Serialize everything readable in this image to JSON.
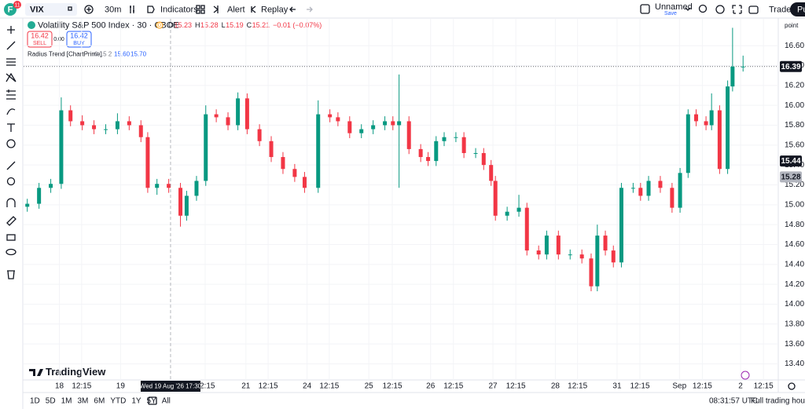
{
  "toolbar": {
    "avatar": "F",
    "badge": "11",
    "symbol": "VIX",
    "interval": "30m",
    "indicators": "Indicators",
    "alert": "Alert",
    "replay": "Replay",
    "layout_name": "Unnamed",
    "layout_status": "Save",
    "trade": "Trade",
    "publish": "Pu"
  },
  "legend": {
    "title": "Volatility S&P 500 Index · 30 · CBOE",
    "flag": "D",
    "ohlc": [
      {
        "k": "O",
        "v": "15.23"
      },
      {
        "k": "H",
        "v": "15.28"
      },
      {
        "k": "L",
        "v": "15.19"
      },
      {
        "k": "C",
        "v": "15.21"
      }
    ],
    "change": "−0.01 (−0.07%)",
    "sell_price": "16.42",
    "sell": "SELL",
    "spread": "0.00",
    "buy_price": "16.42",
    "buy": "BUY",
    "indicator": "Radius Trend [ChartPrime]",
    "indicator_params": "0.15 2",
    "indicator_v1": "15.60",
    "indicator_v2": "15.70"
  },
  "chart_data": {
    "type": "candlestick",
    "y_unit": "point",
    "up_color": "#089981",
    "down_color": "#f23645",
    "xlim": [
      -0.58,
      11.64
    ],
    "ylim": [
      13.23,
      16.87
    ],
    "grid": true,
    "yticks": [
      {
        "value": 13.4,
        "label": "13.40"
      },
      {
        "value": 13.6,
        "label": "13.60"
      },
      {
        "value": 13.8,
        "label": "13.80"
      },
      {
        "value": 14,
        "label": "14.00"
      },
      {
        "value": 14.2,
        "label": "14.20"
      },
      {
        "value": 14.4,
        "label": "14.40"
      },
      {
        "value": 14.6,
        "label": "14.60"
      },
      {
        "value": 14.8,
        "label": "14.80"
      },
      {
        "value": 15,
        "label": "15.00"
      },
      {
        "value": 15.2,
        "label": "15.20"
      },
      {
        "value": 15.4,
        "label": "15.40"
      },
      {
        "value": 15.6,
        "label": "15.60"
      },
      {
        "value": 15.8,
        "label": "15.80"
      },
      {
        "value": 16,
        "label": "16.00"
      },
      {
        "value": 16.2,
        "label": "16.20"
      },
      {
        "value": 16.4,
        "label": "16.40"
      },
      {
        "value": 16.6,
        "label": "16.60"
      }
    ],
    "xticks": [
      {
        "value": 0,
        "label": "18"
      },
      {
        "value": 0.36,
        "label": "12:15"
      },
      {
        "value": 0.99,
        "label": "19"
      },
      {
        "value": 2.36,
        "label": "12:15"
      },
      {
        "value": 3.02,
        "label": "21"
      },
      {
        "value": 3.38,
        "label": "12:15"
      },
      {
        "value": 4.01,
        "label": "24"
      },
      {
        "value": 4.37,
        "label": "12:15"
      },
      {
        "value": 5.01,
        "label": "25"
      },
      {
        "value": 5.39,
        "label": "12:15"
      },
      {
        "value": 6.01,
        "label": "26"
      },
      {
        "value": 6.38,
        "label": "12:15"
      },
      {
        "value": 7.02,
        "label": "27"
      },
      {
        "value": 7.39,
        "label": "12:15"
      },
      {
        "value": 8.03,
        "label": "28"
      },
      {
        "value": 8.39,
        "label": "12:15"
      },
      {
        "value": 9.03,
        "label": "31"
      },
      {
        "value": 9.4,
        "label": "12:15"
      },
      {
        "value": 10.04,
        "label": "Sep"
      },
      {
        "value": 10.41,
        "label": "12:15"
      },
      {
        "value": 11.03,
        "label": "2"
      },
      {
        "value": 11.4,
        "label": "12:15"
      }
    ],
    "crosshair": {
      "x": 1.8,
      "label": "Wed 19 Aug '26 17:30"
    },
    "last_price": 16.39,
    "indicator_levels": [
      {
        "value": 15.44,
        "color": "#131722"
      },
      {
        "value": 15.28,
        "color": "#b2b5be"
      }
    ],
    "ohlc": [
      [
        -0.52,
        14.98,
        15.06,
        14.93,
        15.01
      ],
      [
        -0.33,
        15.01,
        15.22,
        14.96,
        15.17
      ],
      [
        -0.14,
        15.17,
        15.26,
        15.12,
        15.21
      ],
      [
        0.03,
        15.21,
        16.08,
        15.16,
        15.95
      ],
      [
        0.18,
        15.95,
        16.0,
        15.79,
        15.84
      ],
      [
        0.37,
        15.84,
        15.9,
        15.75,
        15.8
      ],
      [
        0.56,
        15.8,
        15.85,
        15.71,
        15.76
      ],
      [
        0.75,
        15.76,
        15.81,
        15.71,
        15.76
      ],
      [
        0.94,
        15.76,
        15.92,
        15.71,
        15.84
      ],
      [
        1.13,
        15.84,
        15.89,
        15.75,
        15.8
      ],
      [
        1.32,
        15.8,
        15.85,
        15.63,
        15.68
      ],
      [
        1.43,
        15.68,
        15.73,
        15.12,
        15.17
      ],
      [
        1.58,
        15.17,
        15.26,
        15.1,
        15.21
      ],
      [
        1.77,
        15.21,
        15.26,
        15.12,
        15.17
      ],
      [
        1.96,
        15.17,
        15.22,
        14.78,
        14.89
      ],
      [
        2.06,
        14.89,
        15.14,
        14.84,
        15.09
      ],
      [
        2.22,
        15.09,
        15.29,
        15.04,
        15.24
      ],
      [
        2.37,
        15.24,
        16.0,
        15.19,
        15.91
      ],
      [
        2.54,
        15.91,
        15.96,
        15.83,
        15.88
      ],
      [
        2.73,
        15.88,
        15.93,
        15.75,
        15.8
      ],
      [
        2.89,
        15.8,
        16.13,
        15.75,
        16.07
      ],
      [
        3.04,
        16.07,
        16.12,
        15.71,
        15.76
      ],
      [
        3.24,
        15.76,
        15.81,
        15.59,
        15.64
      ],
      [
        3.43,
        15.64,
        15.69,
        15.43,
        15.48
      ],
      [
        3.62,
        15.48,
        15.53,
        15.31,
        15.36
      ],
      [
        3.81,
        15.36,
        15.41,
        15.23,
        15.28
      ],
      [
        3.97,
        15.28,
        15.33,
        15.12,
        15.17
      ],
      [
        4.19,
        15.17,
        16.05,
        15.12,
        15.91
      ],
      [
        4.38,
        15.91,
        15.96,
        15.83,
        15.88
      ],
      [
        4.51,
        15.88,
        15.93,
        15.79,
        15.84
      ],
      [
        4.7,
        15.84,
        15.89,
        15.67,
        15.72
      ],
      [
        4.89,
        15.72,
        15.81,
        15.67,
        15.76
      ],
      [
        5.08,
        15.76,
        15.85,
        15.71,
        15.8
      ],
      [
        5.27,
        15.8,
        15.89,
        15.75,
        15.84
      ],
      [
        5.4,
        15.84,
        15.89,
        15.75,
        15.8
      ],
      [
        5.5,
        15.8,
        16.31,
        15.17,
        15.84
      ],
      [
        5.66,
        15.84,
        15.89,
        15.51,
        15.56
      ],
      [
        5.85,
        15.56,
        15.61,
        15.43,
        15.48
      ],
      [
        5.97,
        15.48,
        15.53,
        15.39,
        15.44
      ],
      [
        6.1,
        15.44,
        15.69,
        15.39,
        15.64
      ],
      [
        6.23,
        15.64,
        15.73,
        15.59,
        15.68
      ],
      [
        6.42,
        15.68,
        15.73,
        15.63,
        15.68
      ],
      [
        6.55,
        15.68,
        15.73,
        15.47,
        15.52
      ],
      [
        6.74,
        15.52,
        15.57,
        15.47,
        15.52
      ],
      [
        6.87,
        15.52,
        15.57,
        15.35,
        15.4
      ],
      [
        6.99,
        15.4,
        15.45,
        15.19,
        15.24
      ],
      [
        7.06,
        15.24,
        15.29,
        14.84,
        14.89
      ],
      [
        7.25,
        14.89,
        14.98,
        14.84,
        14.93
      ],
      [
        7.44,
        14.93,
        15.1,
        14.88,
        14.97
      ],
      [
        7.57,
        14.97,
        15.02,
        14.49,
        14.54
      ],
      [
        7.76,
        14.54,
        14.59,
        14.45,
        14.5
      ],
      [
        7.89,
        14.5,
        14.74,
        14.45,
        14.69
      ],
      [
        8.08,
        14.69,
        14.74,
        14.45,
        14.5
      ],
      [
        8.27,
        14.5,
        14.55,
        14.45,
        14.5
      ],
      [
        8.46,
        14.5,
        14.55,
        14.41,
        14.46
      ],
      [
        8.61,
        14.46,
        14.51,
        14.13,
        14.18
      ],
      [
        8.71,
        14.18,
        14.8,
        14.13,
        14.69
      ],
      [
        8.84,
        14.69,
        14.74,
        14.49,
        14.54
      ],
      [
        8.97,
        14.54,
        14.59,
        14.37,
        14.42
      ],
      [
        9.1,
        14.42,
        15.22,
        14.37,
        15.17
      ],
      [
        9.29,
        15.17,
        15.22,
        15.12,
        15.17
      ],
      [
        9.41,
        15.17,
        15.22,
        15.04,
        15.09
      ],
      [
        9.54,
        15.09,
        15.29,
        15.04,
        15.24
      ],
      [
        9.73,
        15.24,
        15.29,
        15.12,
        15.17
      ],
      [
        9.92,
        15.17,
        15.22,
        14.92,
        14.97
      ],
      [
        10.05,
        14.97,
        15.37,
        14.92,
        15.32
      ],
      [
        10.18,
        15.32,
        15.96,
        15.27,
        15.91
      ],
      [
        10.31,
        15.91,
        15.96,
        15.79,
        15.84
      ],
      [
        10.47,
        15.84,
        15.89,
        15.75,
        15.8
      ],
      [
        10.56,
        15.8,
        16.12,
        15.75,
        15.95
      ],
      [
        10.69,
        15.95,
        16.0,
        15.31,
        15.36
      ],
      [
        10.82,
        15.36,
        16.25,
        15.31,
        16.19
      ],
      [
        10.9,
        16.19,
        16.78,
        16.14,
        16.39
      ],
      [
        11.07,
        16.39,
        16.5,
        16.34,
        16.39
      ]
    ]
  },
  "brand": "TradingView",
  "bottom_bar": {
    "ranges": [
      "1D",
      "5D",
      "1M",
      "3M",
      "6M",
      "YTD",
      "1Y",
      "5Y",
      "All"
    ],
    "clock": "08:31:57 UTC",
    "session": "Full trading hours"
  }
}
